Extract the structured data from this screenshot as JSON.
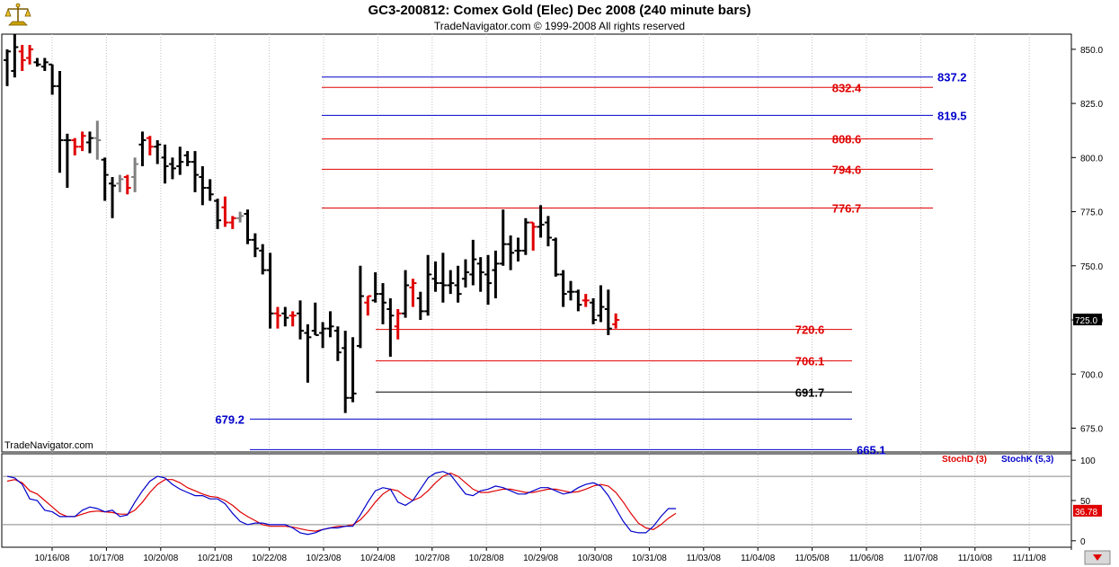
{
  "header": {
    "title": "GC3-200812:  Comex Gold (Elec) Dec 2008  (240 minute bars)",
    "subtitle": "TradeNavigator.com © 1999-2008 All rights reserved"
  },
  "watermark": "TradeNavigator.com",
  "chart_data": [
    {
      "type": "candlestick",
      "name": "price",
      "ylim": [
        664,
        857
      ],
      "y_ticks": [
        850.0,
        825.0,
        800.0,
        775.0,
        750.0,
        725.0,
        700.0,
        675.0
      ],
      "last_price": "725.0",
      "x_labels": [
        "10/16/08",
        "10/17/08",
        "10/20/08",
        "10/21/08",
        "10/22/08",
        "10/23/08",
        "10/24/08",
        "10/27/08",
        "10/28/08",
        "10/29/08",
        "10/30/08",
        "10/31/08",
        "11/03/08",
        "11/04/08",
        "11/05/08",
        "11/06/08",
        "11/07/08",
        "11/10/08",
        "11/11/08"
      ],
      "bar_colors": {
        "up": "#000000",
        "down": "#e00000",
        "neutral": "#808080"
      },
      "bars": [
        {
          "h": 850,
          "l": 833,
          "o": 845,
          "c": 849,
          "col": "black"
        },
        {
          "h": 857,
          "l": 837,
          "o": 840,
          "c": 851,
          "col": "black"
        },
        {
          "h": 852,
          "l": 840,
          "o": 849,
          "c": 845,
          "col": "red"
        },
        {
          "h": 852,
          "l": 843,
          "o": 846,
          "c": 850,
          "col": "red"
        },
        {
          "h": 846,
          "l": 842,
          "o": 844,
          "c": 843,
          "col": "black"
        },
        {
          "h": 846,
          "l": 840,
          "o": 842,
          "c": 844,
          "col": "black"
        },
        {
          "h": 843,
          "l": 829,
          "o": 843,
          "c": 833,
          "col": "black"
        },
        {
          "h": 840,
          "l": 793,
          "o": 833,
          "c": 808,
          "col": "black"
        },
        {
          "h": 811,
          "l": 786,
          "o": 808,
          "c": 808,
          "col": "black"
        },
        {
          "h": 809,
          "l": 801,
          "o": 808,
          "c": 805,
          "col": "red"
        },
        {
          "h": 812,
          "l": 803,
          "o": 805,
          "c": 810,
          "col": "red"
        },
        {
          "h": 812,
          "l": 802,
          "o": 807,
          "c": 809,
          "col": "black"
        },
        {
          "h": 817,
          "l": 799,
          "o": 809,
          "c": 808,
          "col": "gray"
        },
        {
          "h": 800,
          "l": 780,
          "o": 799,
          "c": 792,
          "col": "black"
        },
        {
          "h": 791,
          "l": 772,
          "o": 788,
          "c": 787,
          "col": "black"
        },
        {
          "h": 792,
          "l": 784,
          "o": 788,
          "c": 790,
          "col": "gray"
        },
        {
          "h": 792,
          "l": 783,
          "o": 791,
          "c": 786,
          "col": "red"
        },
        {
          "h": 800,
          "l": 784,
          "o": 791,
          "c": 797,
          "col": "gray"
        },
        {
          "h": 812,
          "l": 796,
          "o": 806,
          "c": 808,
          "col": "black"
        },
        {
          "h": 810,
          "l": 801,
          "o": 809,
          "c": 805,
          "col": "red"
        },
        {
          "h": 808,
          "l": 797,
          "o": 805,
          "c": 806,
          "col": "black"
        },
        {
          "h": 806,
          "l": 788,
          "o": 800,
          "c": 796,
          "col": "black"
        },
        {
          "h": 800,
          "l": 790,
          "o": 797,
          "c": 795,
          "col": "black"
        },
        {
          "h": 805,
          "l": 792,
          "o": 796,
          "c": 798,
          "col": "black"
        },
        {
          "h": 803,
          "l": 796,
          "o": 801,
          "c": 798,
          "col": "black"
        },
        {
          "h": 803,
          "l": 784,
          "o": 798,
          "c": 792,
          "col": "black"
        },
        {
          "h": 796,
          "l": 778,
          "o": 791,
          "c": 786,
          "col": "black"
        },
        {
          "h": 790,
          "l": 780,
          "o": 786,
          "c": 783,
          "col": "black"
        },
        {
          "h": 781,
          "l": 767,
          "o": 780,
          "c": 771,
          "col": "black"
        },
        {
          "h": 782,
          "l": 768,
          "o": 777,
          "c": 770,
          "col": "red"
        },
        {
          "h": 773,
          "l": 767,
          "o": 770,
          "c": 772,
          "col": "red"
        },
        {
          "h": 775,
          "l": 770,
          "o": 772,
          "c": 773,
          "col": "gray"
        },
        {
          "h": 776,
          "l": 760,
          "o": 774,
          "c": 762,
          "col": "black"
        },
        {
          "h": 765,
          "l": 754,
          "o": 762,
          "c": 758,
          "col": "black"
        },
        {
          "h": 760,
          "l": 746,
          "o": 757,
          "c": 748,
          "col": "black"
        },
        {
          "h": 756,
          "l": 721,
          "o": 748,
          "c": 728,
          "col": "black"
        },
        {
          "h": 731,
          "l": 721,
          "o": 728,
          "c": 727,
          "col": "red"
        },
        {
          "h": 731,
          "l": 722,
          "o": 728,
          "c": 726,
          "col": "black"
        },
        {
          "h": 729,
          "l": 722,
          "o": 727,
          "c": 727,
          "col": "red"
        },
        {
          "h": 734,
          "l": 716,
          "o": 728,
          "c": 720,
          "col": "black"
        },
        {
          "h": 723,
          "l": 696,
          "o": 719,
          "c": 717,
          "col": "black"
        },
        {
          "h": 733,
          "l": 718,
          "o": 720,
          "c": 718,
          "col": "black"
        },
        {
          "h": 724,
          "l": 712,
          "o": 719,
          "c": 721,
          "col": "black"
        },
        {
          "h": 729,
          "l": 717,
          "o": 721,
          "c": 722,
          "col": "black"
        },
        {
          "h": 722,
          "l": 706,
          "o": 720,
          "c": 710,
          "col": "black"
        },
        {
          "h": 720,
          "l": 682,
          "o": 712,
          "c": 689,
          "col": "black"
        },
        {
          "h": 717,
          "l": 687,
          "o": 689,
          "c": 691,
          "col": "black"
        },
        {
          "h": 750,
          "l": 712,
          "o": 713,
          "c": 736,
          "col": "black"
        },
        {
          "h": 736,
          "l": 727,
          "o": 733,
          "c": 736,
          "col": "red"
        },
        {
          "h": 747,
          "l": 733,
          "o": 734,
          "c": 737,
          "col": "black"
        },
        {
          "h": 742,
          "l": 723,
          "o": 737,
          "c": 733,
          "col": "black"
        },
        {
          "h": 735,
          "l": 708,
          "o": 730,
          "c": 727,
          "col": "black"
        },
        {
          "h": 730,
          "l": 716,
          "o": 722,
          "c": 728,
          "col": "red"
        },
        {
          "h": 748,
          "l": 726,
          "o": 728,
          "c": 741,
          "col": "black"
        },
        {
          "h": 744,
          "l": 731,
          "o": 740,
          "c": 742,
          "col": "red"
        },
        {
          "h": 738,
          "l": 725,
          "o": 735,
          "c": 729,
          "col": "black"
        },
        {
          "h": 755,
          "l": 727,
          "o": 729,
          "c": 746,
          "col": "black"
        },
        {
          "h": 752,
          "l": 738,
          "o": 744,
          "c": 742,
          "col": "black"
        },
        {
          "h": 756,
          "l": 733,
          "o": 742,
          "c": 741,
          "col": "black"
        },
        {
          "h": 748,
          "l": 737,
          "o": 741,
          "c": 742,
          "col": "black"
        },
        {
          "h": 750,
          "l": 733,
          "o": 741,
          "c": 737,
          "col": "black"
        },
        {
          "h": 753,
          "l": 740,
          "o": 744,
          "c": 747,
          "col": "black"
        },
        {
          "h": 762,
          "l": 741,
          "o": 746,
          "c": 753,
          "col": "black"
        },
        {
          "h": 754,
          "l": 738,
          "o": 751,
          "c": 747,
          "col": "black"
        },
        {
          "h": 755,
          "l": 732,
          "o": 746,
          "c": 742,
          "col": "black"
        },
        {
          "h": 757,
          "l": 735,
          "o": 748,
          "c": 751,
          "col": "black"
        },
        {
          "h": 776,
          "l": 750,
          "o": 751,
          "c": 760,
          "col": "black"
        },
        {
          "h": 764,
          "l": 748,
          "o": 760,
          "c": 756,
          "col": "black"
        },
        {
          "h": 763,
          "l": 752,
          "o": 757,
          "c": 757,
          "col": "black"
        },
        {
          "h": 772,
          "l": 755,
          "o": 757,
          "c": 770,
          "col": "black"
        },
        {
          "h": 770,
          "l": 757,
          "o": 770,
          "c": 768,
          "col": "red"
        },
        {
          "h": 778,
          "l": 763,
          "o": 768,
          "c": 769,
          "col": "black"
        },
        {
          "h": 773,
          "l": 759,
          "o": 770,
          "c": 763,
          "col": "black"
        },
        {
          "h": 763,
          "l": 745,
          "o": 762,
          "c": 746,
          "col": "black"
        },
        {
          "h": 748,
          "l": 731,
          "o": 746,
          "c": 737,
          "col": "black"
        },
        {
          "h": 743,
          "l": 734,
          "o": 738,
          "c": 738,
          "col": "black"
        },
        {
          "h": 739,
          "l": 729,
          "o": 738,
          "c": 732,
          "col": "black"
        },
        {
          "h": 737,
          "l": 731,
          "o": 734,
          "c": 734,
          "col": "red"
        },
        {
          "h": 735,
          "l": 723,
          "o": 733,
          "c": 725,
          "col": "black"
        },
        {
          "h": 741,
          "l": 724,
          "o": 727,
          "c": 731,
          "col": "black"
        },
        {
          "h": 739,
          "l": 718,
          "o": 730,
          "c": 721,
          "col": "black"
        },
        {
          "h": 728,
          "l": 721,
          "o": 723,
          "c": 725,
          "col": "red"
        }
      ],
      "levels": [
        {
          "value": 837.2,
          "label": "837.2",
          "color": "#0000cc"
        },
        {
          "value": 832.4,
          "label": "832.4",
          "color": "#e00000"
        },
        {
          "value": 819.5,
          "label": "819.5",
          "color": "#0000cc"
        },
        {
          "value": 808.6,
          "label": "808.6",
          "color": "#e00000"
        },
        {
          "value": 794.6,
          "label": "794.6",
          "color": "#e00000"
        },
        {
          "value": 776.7,
          "label": "776.7",
          "color": "#e00000"
        },
        {
          "value": 720.6,
          "label": "720.6",
          "color": "#e00000"
        },
        {
          "value": 706.1,
          "label": "706.1",
          "color": "#e00000"
        },
        {
          "value": 691.7,
          "label": "691.7",
          "color": "#000000"
        },
        {
          "value": 679.2,
          "label": "679.2",
          "color": "#0000cc"
        },
        {
          "value": 665.1,
          "label": "665.1",
          "color": "#0000cc"
        }
      ]
    },
    {
      "type": "line",
      "name": "stochastic",
      "ylim": [
        -8,
        108
      ],
      "y_ticks": [
        100,
        50,
        0
      ],
      "reference_lines": [
        80,
        20
      ],
      "last_value": "36.78",
      "series": [
        {
          "name": "StochD (3)",
          "color": "#e00000",
          "values": [
            74,
            76,
            72,
            62,
            58,
            50,
            42,
            34,
            30,
            30,
            33,
            36,
            37,
            36,
            35,
            33,
            33,
            38,
            48,
            60,
            70,
            76,
            76,
            72,
            66,
            62,
            58,
            55,
            54,
            50,
            44,
            36,
            30,
            25,
            20,
            18,
            18,
            18,
            17,
            15,
            13,
            12,
            14,
            16,
            18,
            18,
            20,
            26,
            36,
            48,
            58,
            64,
            62,
            55,
            50,
            54,
            62,
            72,
            80,
            84,
            80,
            72,
            64,
            60,
            60,
            62,
            64,
            64,
            62,
            60,
            60,
            62,
            64,
            64,
            62,
            60,
            61,
            64,
            68,
            70,
            68,
            60,
            48,
            34,
            22,
            16,
            14,
            20,
            28,
            34
          ]
        },
        {
          "name": "StochK (5,3)",
          "color": "#0000cc",
          "values": [
            80,
            78,
            70,
            52,
            50,
            38,
            36,
            30,
            30,
            30,
            38,
            42,
            40,
            36,
            38,
            30,
            32,
            48,
            62,
            74,
            80,
            78,
            70,
            64,
            60,
            56,
            56,
            52,
            52,
            46,
            34,
            24,
            20,
            22,
            22,
            20,
            20,
            20,
            16,
            10,
            8,
            10,
            14,
            16,
            16,
            18,
            18,
            32,
            48,
            62,
            66,
            64,
            48,
            44,
            50,
            64,
            78,
            84,
            86,
            82,
            70,
            58,
            56,
            62,
            64,
            68,
            66,
            62,
            58,
            58,
            62,
            66,
            66,
            62,
            58,
            60,
            66,
            70,
            72,
            68,
            56,
            40,
            24,
            12,
            10,
            10,
            18,
            30,
            40,
            40
          ]
        }
      ]
    }
  ]
}
